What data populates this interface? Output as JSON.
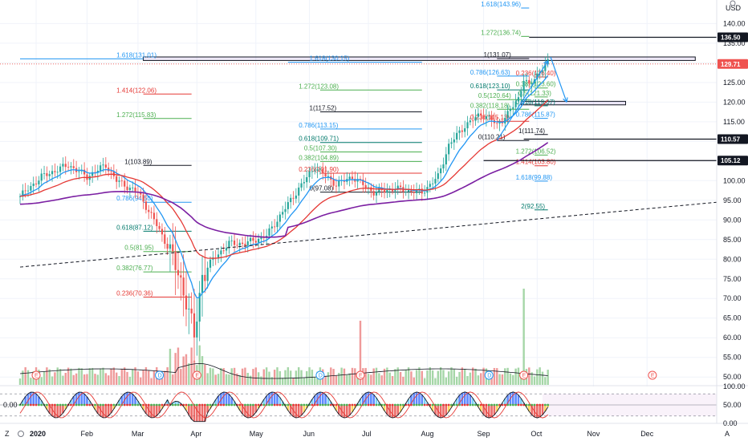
{
  "currency_label": "USD",
  "scale_label": "A",
  "zoom_label": "Z",
  "colors": {
    "up": "#26a69a",
    "down": "#ef5350",
    "ema_fast": "#2196f3",
    "ema_mid": "#e53935",
    "ema_slow": "#7b1fa2",
    "fib_blue": "#2196f3",
    "fib_green": "#4caf50",
    "fib_red": "#e53935",
    "fib_dark": "#131722",
    "fib_teal": "#00796b"
  },
  "price_axis": {
    "min": 48,
    "max": 146,
    "ticks": [
      "140.00",
      "135.00",
      "130.00",
      "125.00",
      "120.00",
      "115.00",
      "110.00",
      "105.00",
      "100.00",
      "95.00",
      "90.00",
      "85.00",
      "80.00",
      "75.00",
      "70.00",
      "65.00",
      "60.00",
      "55.00",
      "50.00"
    ]
  },
  "osc_axis": {
    "min": 0,
    "max": 100,
    "ticks": [
      "100.00",
      "50.00",
      "0.00"
    ],
    "left_value": "0.00"
  },
  "time_axis": {
    "labels": [
      {
        "text": "2020",
        "i": 6
      },
      {
        "text": "Feb",
        "i": 25
      },
      {
        "text": "Mar",
        "i": 44
      },
      {
        "text": "Apr",
        "i": 66
      },
      {
        "text": "May",
        "i": 88
      },
      {
        "text": "Jun",
        "i": 108
      },
      {
        "text": "Jul",
        "i": 130
      },
      {
        "text": "Aug",
        "i": 152
      },
      {
        "text": "Sep",
        "i": 173
      },
      {
        "text": "Oct",
        "i": 193
      },
      {
        "text": "Nov",
        "i": 214
      },
      {
        "text": "Dec",
        "i": 234
      }
    ]
  },
  "price_tags": [
    {
      "text": "136.50",
      "value": 136.5,
      "bg": "#131722"
    },
    {
      "text": "129.71",
      "value": 129.71,
      "bg": "#ef5350"
    },
    {
      "text": "110.57",
      "value": 110.57,
      "bg": "#131722"
    },
    {
      "text": "105.12",
      "value": 105.12,
      "bg": "#131722"
    }
  ],
  "fib_levels": [
    {
      "text": "1.618(131.01)",
      "value": 131.01,
      "x0": 0,
      "x1": 46,
      "lx": 36,
      "color": "fib_blue"
    },
    {
      "text": "1.414(122.06)",
      "value": 122.06,
      "x0": 46,
      "x1": 64,
      "lx": 36,
      "color": "fib_red"
    },
    {
      "text": "1.272(115.83)",
      "value": 115.83,
      "x0": 46,
      "x1": 64,
      "lx": 36,
      "color": "fib_green"
    },
    {
      "text": "1(103.89)",
      "value": 103.89,
      "x0": 46,
      "x1": 64,
      "lx": 39,
      "color": "fib_dark"
    },
    {
      "text": "0.786(94.50)",
      "value": 94.5,
      "x0": 46,
      "x1": 64,
      "lx": 36,
      "color": "fib_blue"
    },
    {
      "text": "0.618(87.12)",
      "value": 87.12,
      "x0": 46,
      "x1": 64,
      "lx": 36,
      "color": "fib_teal"
    },
    {
      "text": "0.5(81.95)",
      "value": 81.95,
      "x0": 46,
      "x1": 64,
      "lx": 39,
      "color": "fib_green"
    },
    {
      "text": "0.382(76.77)",
      "value": 76.77,
      "x0": 46,
      "x1": 64,
      "lx": 36,
      "color": "fib_green"
    },
    {
      "text": "0.236(70.36)",
      "value": 70.36,
      "x0": 46,
      "x1": 64,
      "lx": 36,
      "color": "fib_red"
    },
    {
      "text": "1.618(130.15)",
      "value": 130.15,
      "x0": 100,
      "x1": 150,
      "lx": 108,
      "color": "fib_blue"
    },
    {
      "text": "1.272(123.08)",
      "value": 123.08,
      "x0": 112,
      "x1": 150,
      "lx": 104,
      "color": "fib_green"
    },
    {
      "text": "1(117.52)",
      "value": 117.52,
      "x0": 112,
      "x1": 150,
      "lx": 108,
      "color": "fib_dark"
    },
    {
      "text": "0.786(113.15)",
      "value": 113.15,
      "x0": 112,
      "x1": 150,
      "lx": 104,
      "color": "fib_blue"
    },
    {
      "text": "0.618(109.71)",
      "value": 109.71,
      "x0": 112,
      "x1": 150,
      "lx": 104,
      "color": "fib_teal"
    },
    {
      "text": "0.5(107.30)",
      "value": 107.3,
      "x0": 112,
      "x1": 150,
      "lx": 106,
      "color": "fib_green"
    },
    {
      "text": "0.382(104.89)",
      "value": 104.89,
      "x0": 112,
      "x1": 150,
      "lx": 104,
      "color": "fib_green"
    },
    {
      "text": "0.236(101.90)",
      "value": 101.9,
      "x0": 112,
      "x1": 150,
      "lx": 104,
      "color": "fib_red"
    },
    {
      "text": "0(97.08)",
      "value": 97.08,
      "x0": 112,
      "x1": 150,
      "lx": 108,
      "color": "fib_dark"
    },
    {
      "text": "1.618(143.96)",
      "value": 143.96,
      "x0": 187,
      "x1": 190,
      "lx": 172,
      "color": "fib_blue"
    },
    {
      "text": "1.272(136.74)",
      "value": 136.74,
      "x0": 187,
      "x1": 190,
      "lx": 172,
      "color": "fib_green"
    },
    {
      "text": "1(131.07)",
      "value": 131.07,
      "x0": 178,
      "x1": 190,
      "lx": 173,
      "color": "fib_dark"
    },
    {
      "text": "0.786(126.63)",
      "value": 126.63,
      "x0": 178,
      "x1": 190,
      "lx": 168,
      "color": "fib_blue"
    },
    {
      "text": "0.618(123.10)",
      "value": 123.1,
      "x0": 178,
      "x1": 190,
      "lx": 168,
      "color": "fib_teal"
    },
    {
      "text": "0.5(120.64)",
      "value": 120.64,
      "x0": 178,
      "x1": 190,
      "lx": 171,
      "color": "fib_green"
    },
    {
      "text": "0.382(118.18)",
      "value": 118.18,
      "x0": 178,
      "x1": 190,
      "lx": 168,
      "color": "fib_green"
    },
    {
      "text": "0.236(115.13)",
      "value": 115.13,
      "x0": 178,
      "x1": 190,
      "lx": 168,
      "color": "fib_red"
    },
    {
      "text": "0(110.21)",
      "value": 110.21,
      "x0": 178,
      "x1": 190,
      "lx": 171,
      "color": "fib_dark"
    },
    {
      "text": "0.236(126.40)",
      "value": 126.4,
      "x0": 192,
      "x1": 197,
      "lx": 185,
      "color": "fib_red"
    },
    {
      "text": "0.382(123.60)",
      "value": 123.6,
      "x0": 192,
      "x1": 197,
      "lx": 185,
      "color": "fib_green"
    },
    {
      "text": "0.5(121.33)",
      "value": 121.33,
      "x0": 192,
      "x1": 197,
      "lx": 186,
      "color": "fib_green"
    },
    {
      "text": "0.618(119.07)",
      "value": 119.07,
      "x0": 192,
      "x1": 197,
      "lx": 185,
      "color": "fib_teal"
    },
    {
      "text": "0.786(115.87)",
      "value": 115.87,
      "x0": 192,
      "x1": 197,
      "lx": 185,
      "color": "fib_blue"
    },
    {
      "text": "1(111.74)",
      "value": 111.74,
      "x0": 192,
      "x1": 197,
      "lx": 186,
      "color": "fib_dark"
    },
    {
      "text": "1.272(106.52)",
      "value": 106.52,
      "x0": 192,
      "x1": 197,
      "lx": 185,
      "color": "fib_green"
    },
    {
      "text": "1.414(103.80)",
      "value": 103.8,
      "x0": 192,
      "x1": 197,
      "lx": 185,
      "color": "fib_red"
    },
    {
      "text": "1.618(99.88)",
      "value": 99.88,
      "x0": 192,
      "x1": 197,
      "lx": 185,
      "color": "fib_blue"
    },
    {
      "text": "2(92.55)",
      "value": 92.55,
      "x0": 192,
      "x1": 197,
      "lx": 187,
      "color": "fib_teal"
    }
  ],
  "horizontal_lines": [
    {
      "value": 136.5,
      "x0": 190
    },
    {
      "value": 110.57,
      "x0": 188
    },
    {
      "value": 105.12,
      "x0": 173
    }
  ],
  "zones": [
    {
      "y0": 131.5,
      "y1": 130.6,
      "x0": 46,
      "x1": 252
    },
    {
      "y0": 120.2,
      "y1": 119.3,
      "x0": 187,
      "x1": 226
    }
  ],
  "projection_arrow": [
    {
      "i": 198,
      "v": 131.5
    },
    {
      "i": 204,
      "v": 120.0
    }
  ],
  "projection_arrow2": [
    {
      "i": 178,
      "v": 110.2
    },
    {
      "i": 197,
      "v": 130.5
    }
  ],
  "trendline": [
    {
      "i": 0,
      "v": 78.0
    },
    {
      "i": 260,
      "v": 94.5
    }
  ],
  "events": [
    {
      "text": "E",
      "i": 6,
      "color": "#ef5350"
    },
    {
      "text": "D",
      "i": 52,
      "color": "#2196f3"
    },
    {
      "text": "E",
      "i": 66,
      "color": "#ef5350"
    },
    {
      "text": "D",
      "i": 112,
      "color": "#2196f3"
    },
    {
      "text": "E",
      "i": 127,
      "color": "#ef5350"
    },
    {
      "text": "D",
      "i": 175,
      "color": "#2196f3"
    },
    {
      "text": "E",
      "i": 188,
      "color": "#ef5350"
    },
    {
      "text": "E",
      "i": 236,
      "color": "#ef5350"
    }
  ]
}
